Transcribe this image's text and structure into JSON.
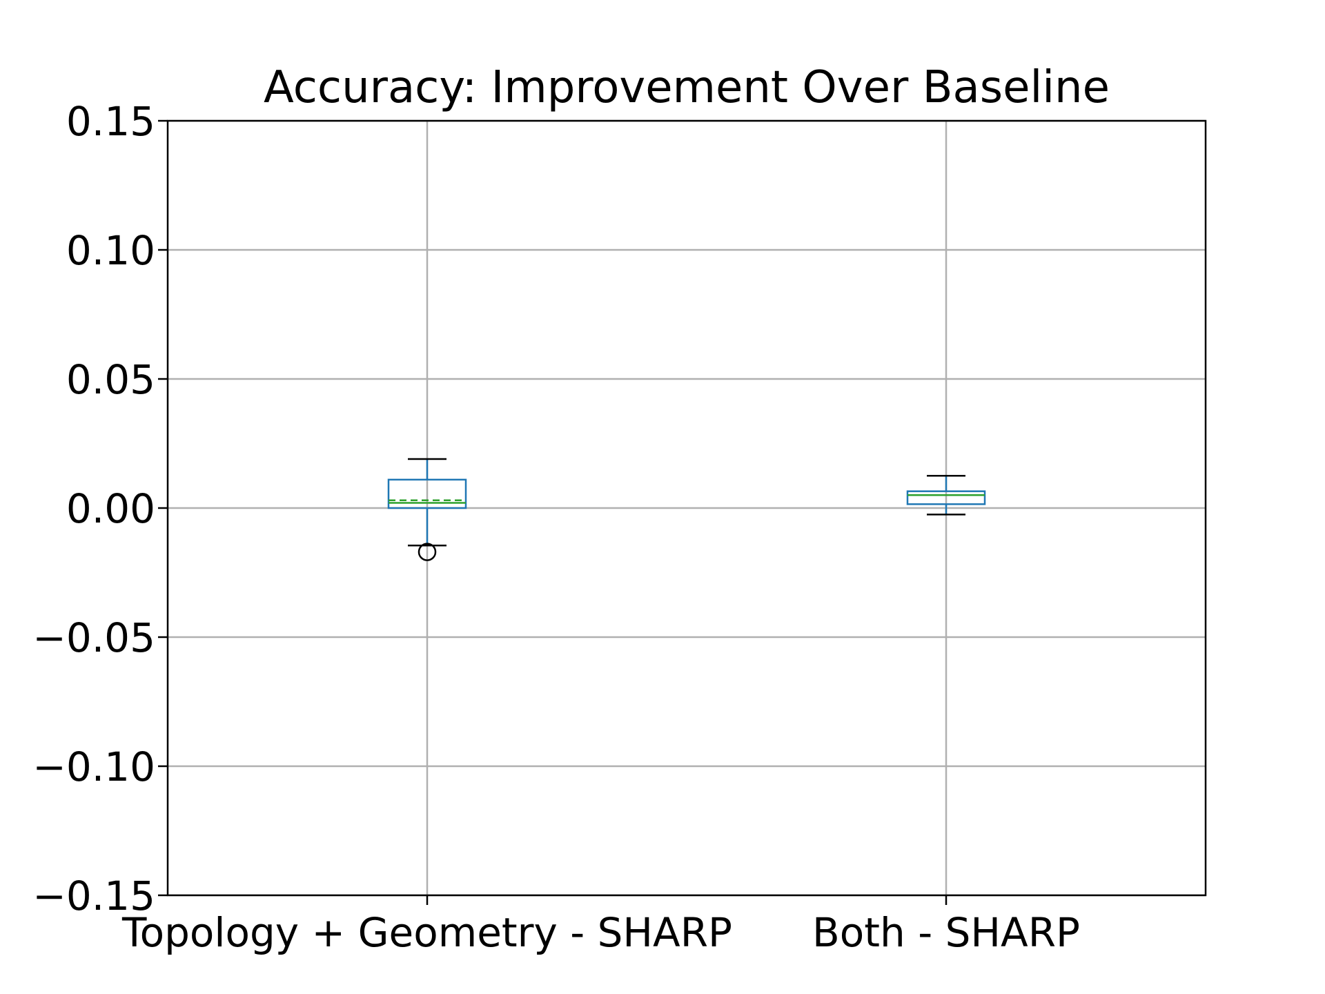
{
  "chart_data": {
    "type": "box",
    "title": "Accuracy: Improvement Over Baseline",
    "xlabel": "",
    "ylabel": "",
    "ylim": [
      -0.15,
      0.15
    ],
    "yticks": [
      0.15,
      0.1,
      0.05,
      0.0,
      -0.05,
      -0.1,
      -0.15
    ],
    "ytick_labels": [
      "0.15",
      "0.10",
      "0.05",
      "0.00",
      "−0.05",
      "−0.10",
      "−0.15"
    ],
    "grid": true,
    "categories": [
      "Topology + Geometry - SHARP",
      "Both - SHARP"
    ],
    "boxes": [
      {
        "category": "Topology + Geometry - SHARP",
        "whisker_low": -0.0145,
        "q1": 0.0,
        "median": 0.002,
        "mean": 0.003,
        "q3": 0.011,
        "whisker_high": 0.019,
        "outliers": [
          -0.017
        ]
      },
      {
        "category": "Both - SHARP",
        "whisker_low": -0.0025,
        "q1": 0.0015,
        "median": 0.005,
        "mean": 0.005,
        "q3": 0.0065,
        "whisker_high": 0.0125,
        "outliers": []
      }
    ],
    "colors": {
      "box": "#1f77b4",
      "median": "#2ca02c",
      "mean": "#2ca02c",
      "whisker_cap": "#000000",
      "outlier": "#000000",
      "grid": "#b0b0b0",
      "axes": "#000000"
    }
  }
}
